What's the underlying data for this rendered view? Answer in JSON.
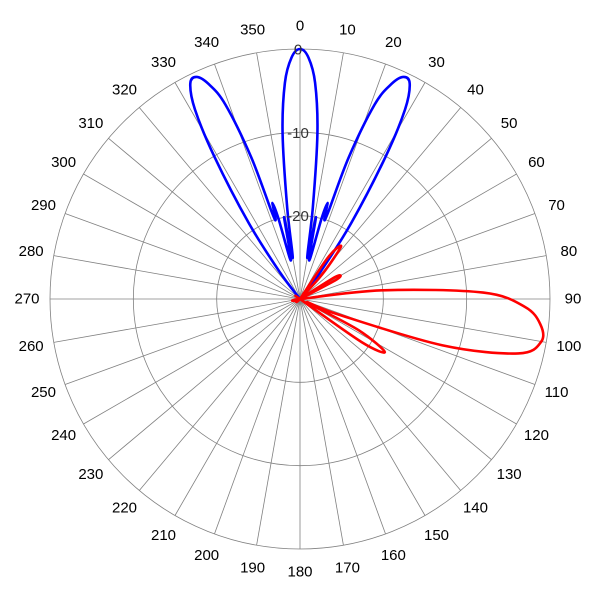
{
  "chart_data": {
    "type": "polar-line",
    "title": "",
    "angle_direction": "clockwise",
    "angle_zero": "top",
    "angle_ticks": [
      0,
      10,
      20,
      30,
      40,
      50,
      60,
      70,
      80,
      90,
      100,
      110,
      120,
      130,
      140,
      150,
      160,
      170,
      180,
      190,
      200,
      210,
      220,
      230,
      240,
      250,
      260,
      270,
      280,
      290,
      300,
      310,
      320,
      330,
      340,
      350
    ],
    "angle_tick_labels": [
      "0",
      "10",
      "20",
      "30",
      "40",
      "50",
      "60",
      "70",
      "80",
      "90",
      "100",
      "110",
      "120",
      "130",
      "140",
      "150",
      "160",
      "170",
      "180",
      "190",
      "200",
      "210",
      "220",
      "230",
      "240",
      "250",
      "260",
      "270",
      "280",
      "290",
      "300",
      "310",
      "320",
      "330",
      "340",
      "350"
    ],
    "radial_range": [
      -30,
      0
    ],
    "radial_ticks": [
      0,
      -10,
      -20
    ],
    "radial_tick_labels": [
      "0",
      "-10",
      "-20"
    ],
    "grid": true,
    "series": [
      {
        "color": "#0000ff",
        "points": [
          [
            -40,
            -30
          ],
          [
            -37,
            -26
          ],
          [
            -34,
            -19
          ],
          [
            -31,
            -10
          ],
          [
            -29,
            -4
          ],
          [
            -27,
            -1
          ],
          [
            -25,
            -0.6
          ],
          [
            -23,
            -2
          ],
          [
            -21,
            -5
          ],
          [
            -19,
            -12
          ],
          [
            -18,
            -19
          ],
          [
            -17,
            -20
          ],
          [
            -16,
            -18
          ],
          [
            -15,
            -20
          ],
          [
            -14,
            -25
          ],
          [
            -12,
            -24
          ],
          [
            -11,
            -20
          ],
          [
            -10,
            -25
          ],
          [
            -8,
            -19
          ],
          [
            -6,
            -10
          ],
          [
            -4,
            -4
          ],
          [
            -2,
            -1
          ],
          [
            0,
            0
          ],
          [
            2,
            -1
          ],
          [
            4,
            -4
          ],
          [
            6,
            -10
          ],
          [
            8,
            -19
          ],
          [
            10,
            -25
          ],
          [
            11,
            -20
          ],
          [
            12,
            -24
          ],
          [
            14,
            -25
          ],
          [
            15,
            -20
          ],
          [
            16,
            -18
          ],
          [
            17,
            -20
          ],
          [
            18,
            -19
          ],
          [
            19,
            -12
          ],
          [
            21,
            -5
          ],
          [
            23,
            -2
          ],
          [
            25,
            -0.6
          ],
          [
            27,
            -1
          ],
          [
            29,
            -4
          ],
          [
            31,
            -10
          ],
          [
            34,
            -19
          ],
          [
            37,
            -26
          ],
          [
            40,
            -30
          ]
        ]
      },
      {
        "color": "#ff0000",
        "points": [
          [
            30,
            -30
          ],
          [
            34,
            -24
          ],
          [
            38,
            -22
          ],
          [
            42,
            -26
          ],
          [
            46,
            -30
          ],
          [
            52,
            -30
          ],
          [
            58,
            -25
          ],
          [
            62,
            -25
          ],
          [
            66,
            -30
          ],
          [
            80,
            -30
          ],
          [
            84,
            -20
          ],
          [
            88,
            -8
          ],
          [
            92,
            -3
          ],
          [
            96,
            -1
          ],
          [
            100,
            -0.6
          ],
          [
            104,
            -3
          ],
          [
            108,
            -12
          ],
          [
            112,
            -25
          ],
          [
            115,
            -29
          ],
          [
            118,
            -22
          ],
          [
            122,
            -18
          ],
          [
            125,
            -21
          ],
          [
            128,
            -30
          ],
          [
            132,
            -30
          ]
        ]
      }
    ]
  }
}
